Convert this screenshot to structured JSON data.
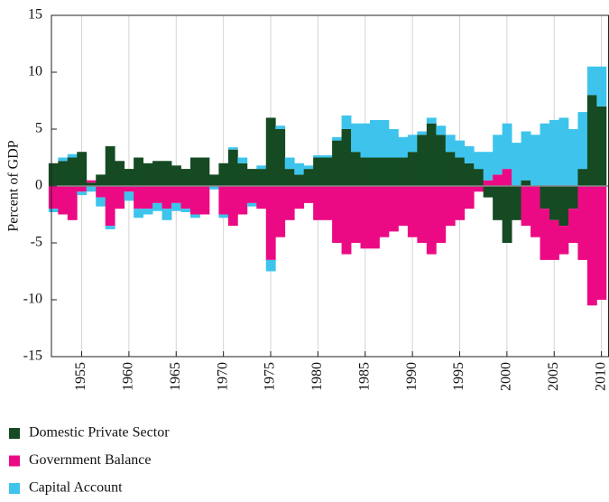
{
  "chart_data": {
    "type": "area",
    "y_label": "Percent of GDP",
    "x": [
      1952,
      1953,
      1954,
      1955,
      1956,
      1957,
      1958,
      1959,
      1960,
      1961,
      1962,
      1963,
      1964,
      1965,
      1966,
      1967,
      1968,
      1969,
      1970,
      1971,
      1972,
      1973,
      1974,
      1975,
      1976,
      1977,
      1978,
      1979,
      1980,
      1981,
      1982,
      1983,
      1984,
      1985,
      1986,
      1987,
      1988,
      1989,
      1990,
      1991,
      1992,
      1993,
      1994,
      1995,
      1996,
      1997,
      1998,
      1999,
      2000,
      2001,
      2002,
      2003,
      2004,
      2005,
      2006,
      2007,
      2008,
      2009,
      2010
    ],
    "series": [
      {
        "name": "Domestic Private Sector",
        "color": "#154a22",
        "values": [
          2,
          2.2,
          2.5,
          3,
          0.3,
          1,
          3.5,
          2.2,
          1.5,
          2.5,
          2,
          2.2,
          2.2,
          1.8,
          1.5,
          2.5,
          2.5,
          1,
          2,
          3.2,
          2,
          1.5,
          1.5,
          6,
          5,
          1.5,
          1,
          1.5,
          2.5,
          2.5,
          4,
          5,
          3,
          2.5,
          2.5,
          2.5,
          2.5,
          2.5,
          3,
          4.5,
          5.5,
          4.5,
          3,
          2.5,
          2,
          1.5,
          -1,
          -3,
          -5,
          -3,
          0.5,
          0,
          -2,
          -3,
          -3.5,
          -2,
          1.5,
          8,
          7
        ]
      },
      {
        "name": "Government Balance",
        "color": "#ec0a84",
        "values": [
          -2,
          -2.5,
          -3,
          -0.5,
          0.2,
          -1,
          -3.5,
          -2,
          -0.5,
          -2,
          -2,
          -1.5,
          -2,
          -1.5,
          -2,
          -2.5,
          -2.5,
          0,
          -2.5,
          -3.5,
          -2.5,
          -1.5,
          -2,
          -6.5,
          -4.5,
          -3,
          -2,
          -1.5,
          -3,
          -3,
          -5,
          -6,
          -5,
          -5.5,
          -5.5,
          -4.5,
          -4,
          -3.5,
          -4.5,
          -5,
          -6,
          -5,
          -3.5,
          -3,
          -2,
          -0.5,
          0.5,
          1,
          1.5,
          0,
          -3.5,
          -4.5,
          -4.5,
          -3.5,
          -2.5,
          -3,
          -6.5,
          -10.5,
          -10
        ]
      },
      {
        "name": "Capital Account",
        "color": "#3ec4ec",
        "values": [
          -0.3,
          0.3,
          0.3,
          -0.3,
          -0.5,
          -0.8,
          -0.3,
          0,
          -0.8,
          -0.8,
          -0.5,
          -0.7,
          -1,
          -0.7,
          -0.3,
          -0.3,
          0,
          -0.3,
          -0.3,
          0.2,
          0.5,
          -0.3,
          0.3,
          -1,
          0.3,
          1,
          1,
          0.3,
          0.2,
          0.2,
          0.3,
          1.2,
          2.5,
          3,
          3.3,
          3.3,
          2.5,
          1.8,
          1.5,
          0.3,
          0.5,
          0.8,
          1.5,
          1.5,
          1.5,
          1.5,
          2.5,
          3.5,
          4,
          3.8,
          4.3,
          4.5,
          5.5,
          5.8,
          6,
          5,
          5,
          2.5,
          3.5
        ]
      }
    ],
    "xlim": [
      1951.8,
      2010.8
    ],
    "xticks": [
      1955,
      1960,
      1965,
      1970,
      1975,
      1980,
      1985,
      1990,
      1995,
      2000,
      2005,
      2010
    ],
    "ylim": [
      -15,
      15
    ],
    "yticks": [
      15,
      10,
      5,
      0,
      -5,
      -10,
      -15
    ],
    "grid": true
  }
}
